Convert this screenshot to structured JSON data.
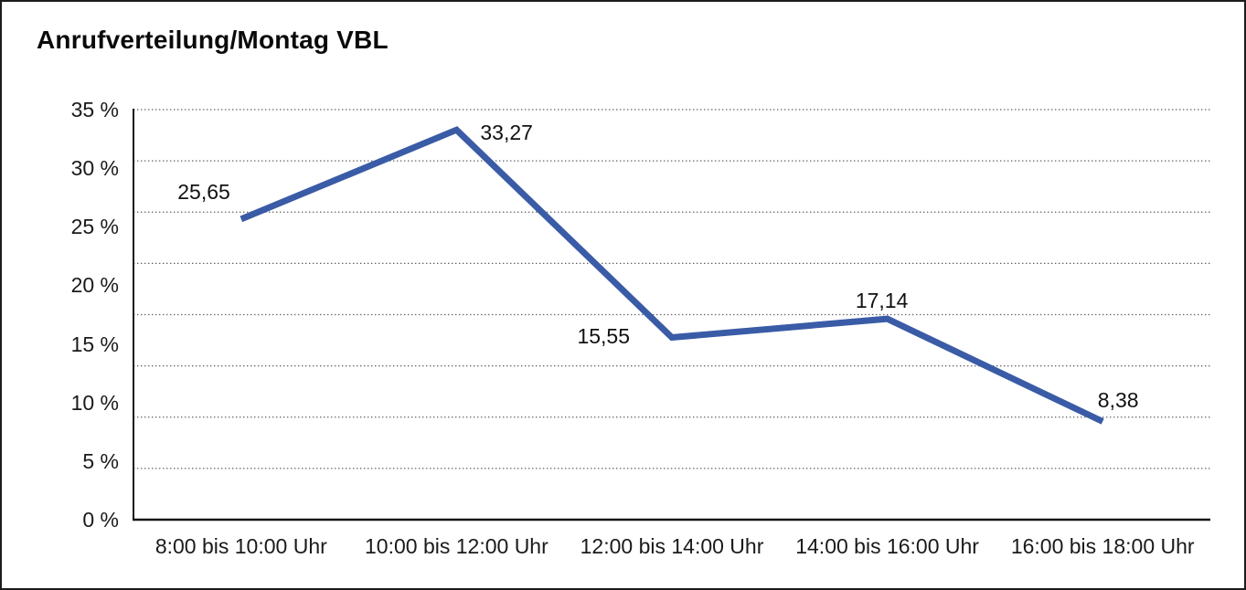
{
  "window": {
    "background": "#ffffff",
    "border_color": "#1c1c1c"
  },
  "chart_data": {
    "type": "line",
    "title": "Anrufverteilung/Montag VBL",
    "categories": [
      "8:00 bis 10:00 Uhr",
      "10:00 bis 12:00 Uhr",
      "12:00 bis 14:00 Uhr",
      "14:00 bis 16:00 Uhr",
      "16:00 bis 18:00 Uhr"
    ],
    "series": [
      {
        "name": "Anrufverteilung Montag",
        "values": [
          25.65,
          33.27,
          15.55,
          17.14,
          8.38
        ],
        "color": "#3a5ba6"
      }
    ],
    "point_labels": [
      "25,65",
      "33,27",
      "15,55",
      "17,14",
      "8,38"
    ],
    "xlabel": "",
    "ylabel": "",
    "ylim": [
      0,
      35
    ],
    "y_tick_step": 5,
    "y_tick_labels": [
      "0 %",
      "5 %",
      "10 %",
      "15 %",
      "20 %",
      "25 %",
      "30 %",
      "35 %"
    ],
    "grid": "horizontal-dotted",
    "grid_divisions": 8,
    "grid_color": "#5f5f5f",
    "axis_color": "#161616",
    "legend": "none"
  }
}
